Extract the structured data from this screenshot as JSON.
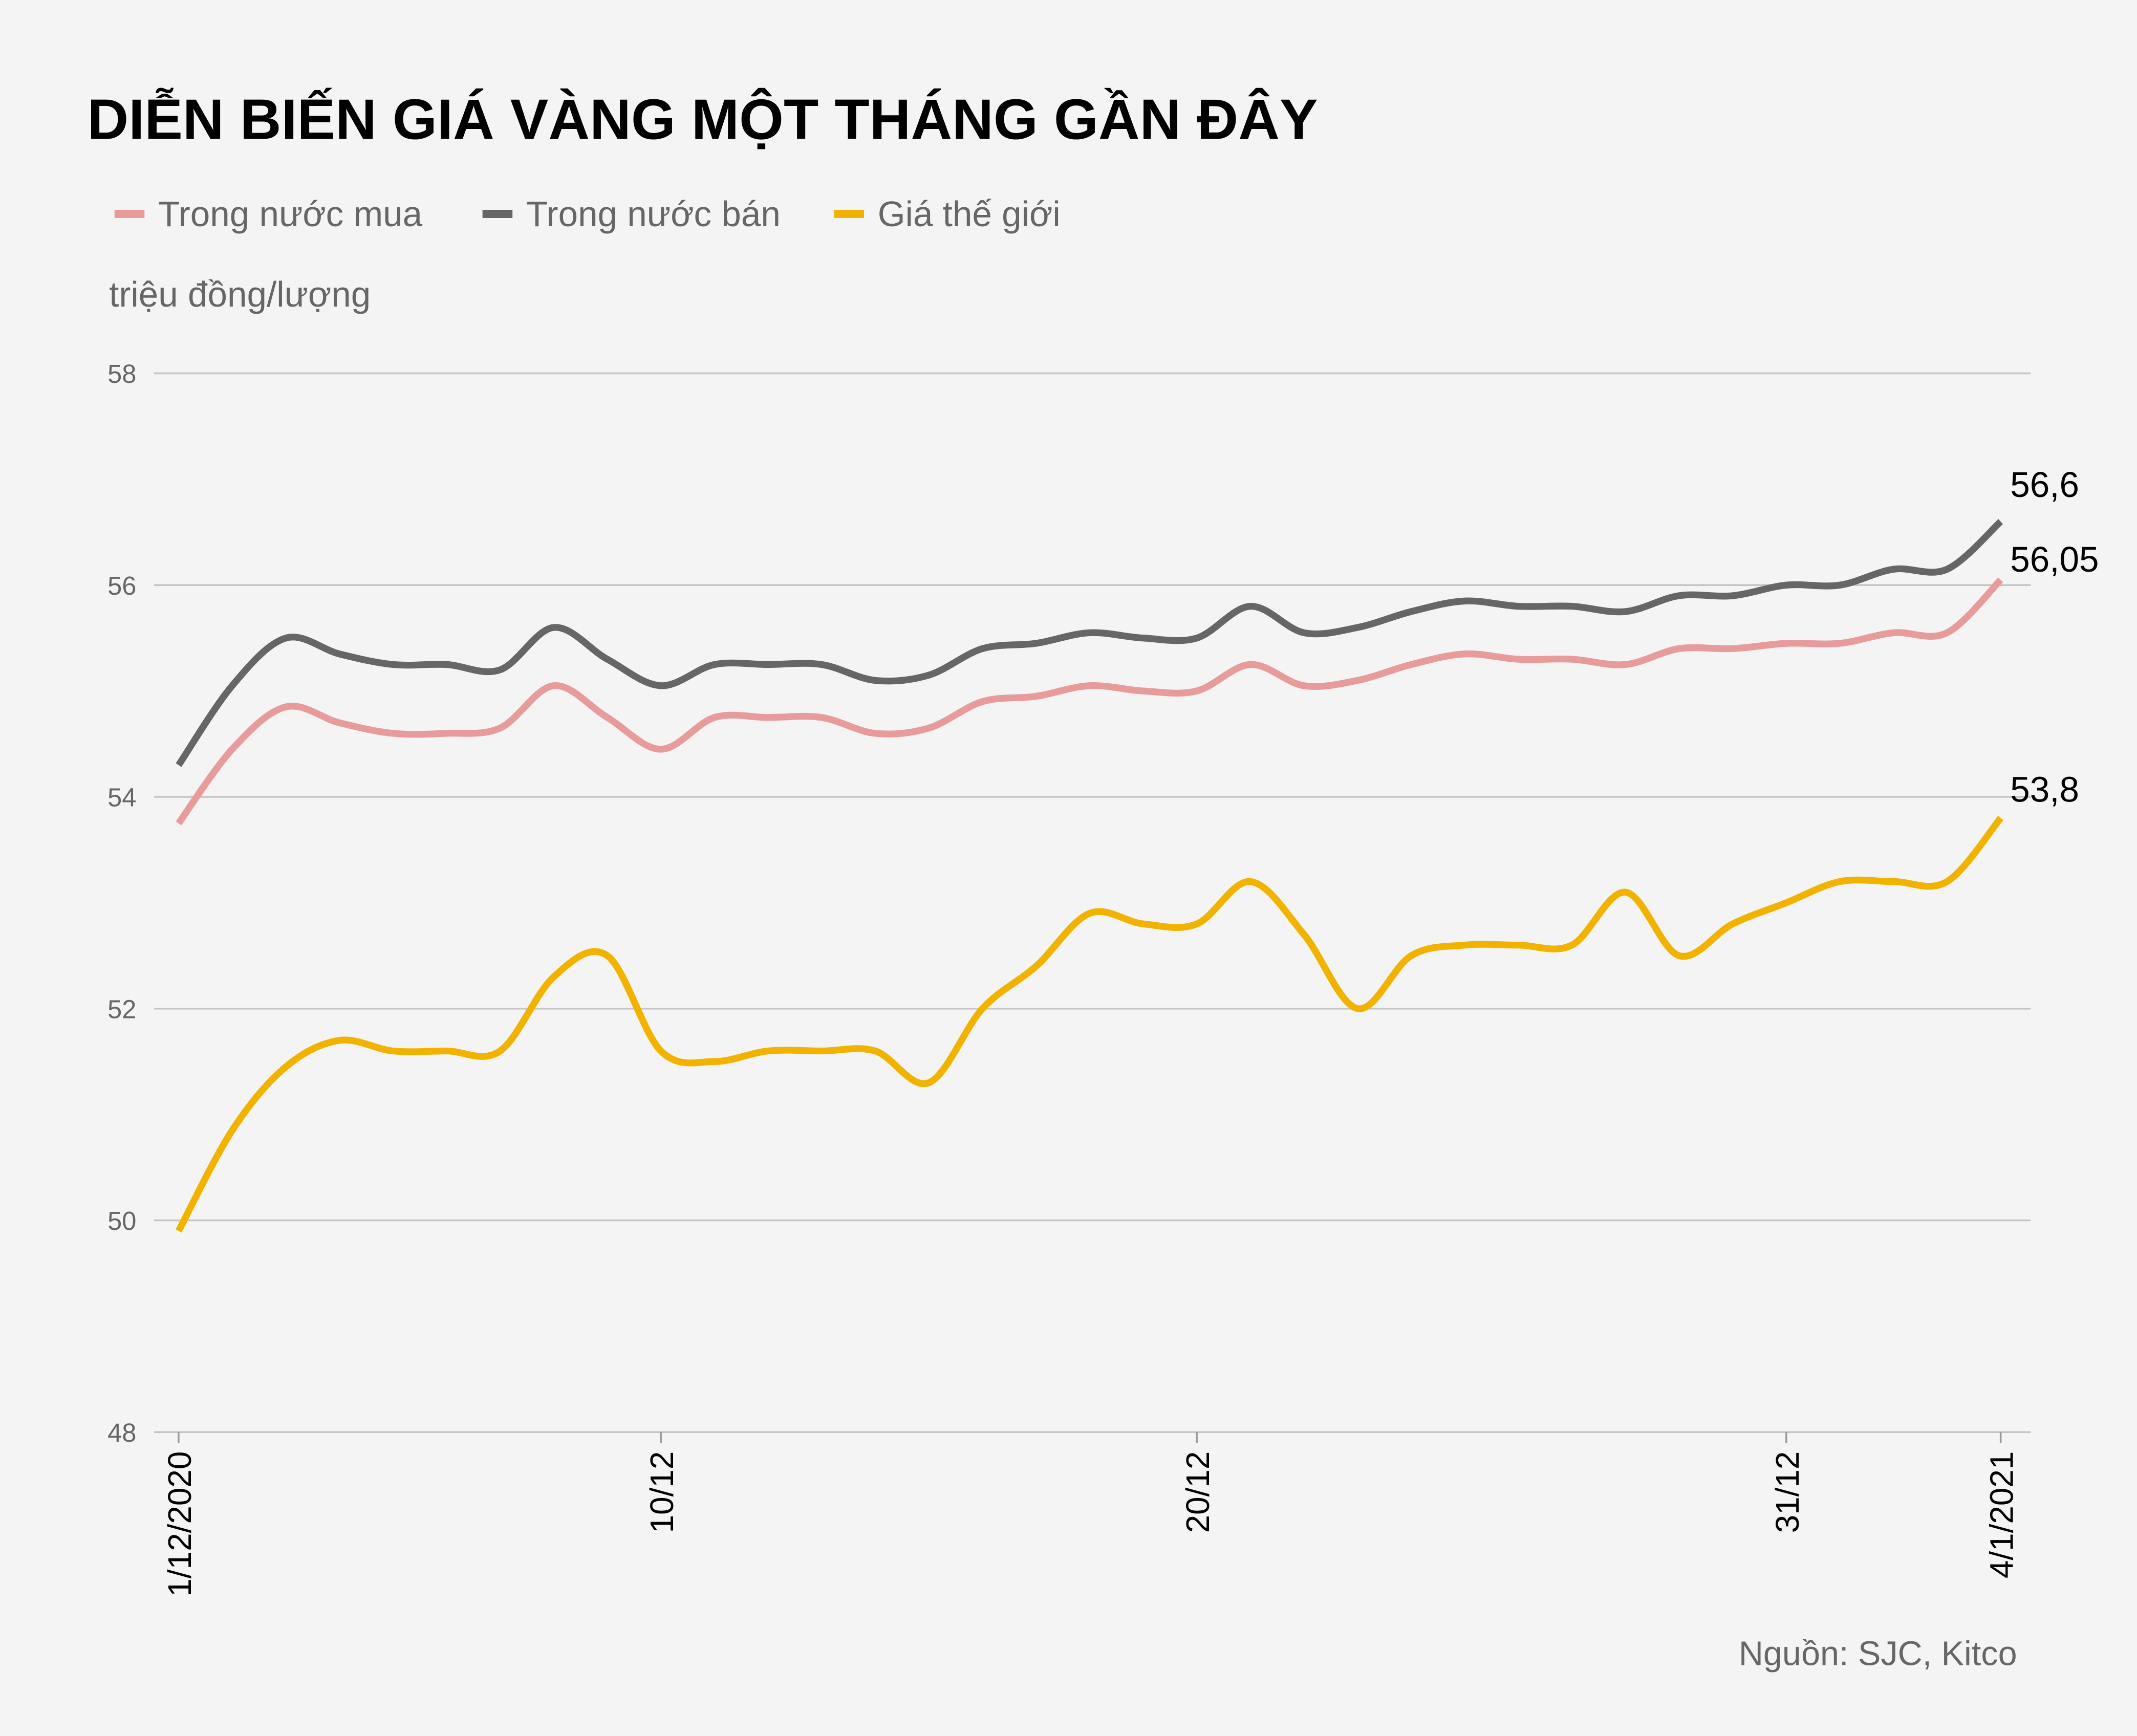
{
  "chart_data": {
    "type": "line",
    "title": "DIỄN BIẾN GIÁ VÀNG MỘT THÁNG GẦN ĐÂY",
    "ylabel": "triệu đồng/lượng",
    "source": "Nguồn: SJC, Kitco",
    "ylim": [
      48,
      58
    ],
    "yticks": [
      "58",
      "56",
      "54",
      "52",
      "50",
      "48"
    ],
    "xlim": [
      "1/12/2020",
      "4/1/2021"
    ],
    "xticks": [
      {
        "label": "1/12/2020",
        "day": 0
      },
      {
        "label": "10/12",
        "day": 9
      },
      {
        "label": "20/12",
        "day": 19
      },
      {
        "label": "31/12",
        "day": 30
      },
      {
        "label": "4/1/2021",
        "day": 34
      }
    ],
    "grid": true,
    "legend_position": "top-left",
    "series": [
      {
        "name": "Trong nước mua",
        "color": "#e89b9b",
        "end_label": "56,05",
        "values": [
          53.75,
          54.45,
          54.85,
          54.7,
          54.6,
          54.6,
          54.65,
          55.05,
          54.75,
          54.45,
          54.75,
          54.75,
          54.75,
          54.6,
          54.65,
          54.9,
          54.95,
          55.05,
          55.0,
          55.0,
          55.25,
          55.05,
          55.1,
          55.25,
          55.35,
          55.3,
          55.3,
          55.25,
          55.4,
          55.4,
          55.45,
          55.45,
          55.55,
          55.55,
          56.05
        ]
      },
      {
        "name": "Trong nước bán",
        "color": "#666666",
        "end_label": "56,6",
        "values": [
          54.3,
          55.05,
          55.5,
          55.35,
          55.25,
          55.25,
          55.2,
          55.6,
          55.3,
          55.05,
          55.25,
          55.25,
          55.25,
          55.1,
          55.15,
          55.4,
          55.45,
          55.55,
          55.5,
          55.5,
          55.8,
          55.55,
          55.6,
          55.75,
          55.85,
          55.8,
          55.8,
          55.75,
          55.9,
          55.9,
          56.0,
          56.0,
          56.15,
          56.15,
          56.6
        ]
      },
      {
        "name": "Giá thế giới",
        "color": "#f2b200",
        "end_label": "53,8",
        "values": [
          49.9,
          50.85,
          51.45,
          51.7,
          51.6,
          51.6,
          51.6,
          52.3,
          52.5,
          51.6,
          51.5,
          51.6,
          51.6,
          51.6,
          51.3,
          52.0,
          52.4,
          52.9,
          52.8,
          52.8,
          53.2,
          52.7,
          52.0,
          52.5,
          52.6,
          52.6,
          52.6,
          53.1,
          52.5,
          52.8,
          53.0,
          53.2,
          53.2,
          53.2,
          53.8
        ]
      }
    ]
  }
}
